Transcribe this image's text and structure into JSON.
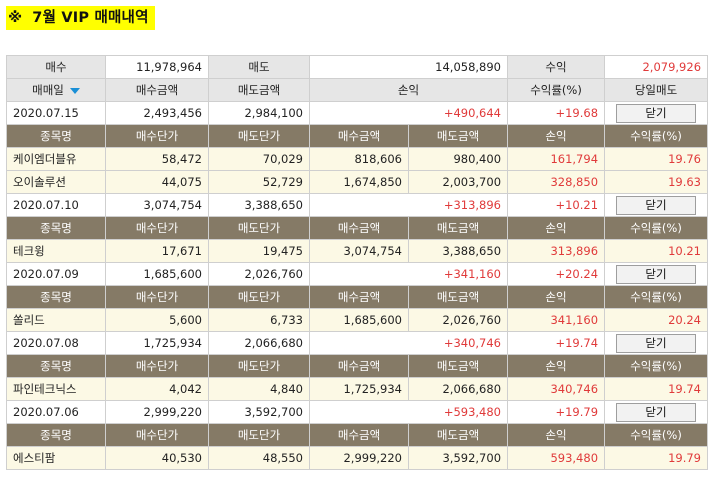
{
  "title": {
    "mark": "※",
    "text": "7월 VIP 매매내역"
  },
  "summary": {
    "buy_label": "매수",
    "buy_value": "11,978,964",
    "sell_label": "매도",
    "sell_value": "14,058,890",
    "profit_label": "수익",
    "profit_value": "2,079,926"
  },
  "header": {
    "col1": "매매일",
    "col2": "매수금액",
    "col3": "매도금액",
    "col4": "손익",
    "col5": "수익률(%)",
    "col6": "당일매도"
  },
  "subheader": {
    "col1": "종목명",
    "col2": "매수단가",
    "col3": "매도단가",
    "col4": "매수금액",
    "col5": "매도금액",
    "col6": "손익",
    "col7": "수익률(%)"
  },
  "close_label": "닫기",
  "days": [
    {
      "date": "2020.07.15",
      "buy": "2,493,456",
      "sell": "2,984,100",
      "pnl": "+490,644",
      "rate": "+19.68",
      "items": [
        {
          "name": "케이엠더블유",
          "buy_price": "58,472",
          "sell_price": "70,029",
          "buy_amt": "818,606",
          "sell_amt": "980,400",
          "pnl": "161,794",
          "rate": "19.76"
        },
        {
          "name": "오이솔루션",
          "buy_price": "44,075",
          "sell_price": "52,729",
          "buy_amt": "1,674,850",
          "sell_amt": "2,003,700",
          "pnl": "328,850",
          "rate": "19.63"
        }
      ]
    },
    {
      "date": "2020.07.10",
      "buy": "3,074,754",
      "sell": "3,388,650",
      "pnl": "+313,896",
      "rate": "+10.21",
      "items": [
        {
          "name": "테크윙",
          "buy_price": "17,671",
          "sell_price": "19,475",
          "buy_amt": "3,074,754",
          "sell_amt": "3,388,650",
          "pnl": "313,896",
          "rate": "10.21"
        }
      ]
    },
    {
      "date": "2020.07.09",
      "buy": "1,685,600",
      "sell": "2,026,760",
      "pnl": "+341,160",
      "rate": "+20.24",
      "items": [
        {
          "name": "쏠리드",
          "buy_price": "5,600",
          "sell_price": "6,733",
          "buy_amt": "1,685,600",
          "sell_amt": "2,026,760",
          "pnl": "341,160",
          "rate": "20.24"
        }
      ]
    },
    {
      "date": "2020.07.08",
      "buy": "1,725,934",
      "sell": "2,066,680",
      "pnl": "+340,746",
      "rate": "+19.74",
      "items": [
        {
          "name": "파인테크닉스",
          "buy_price": "4,042",
          "sell_price": "4,840",
          "buy_amt": "1,725,934",
          "sell_amt": "2,066,680",
          "pnl": "340,746",
          "rate": "19.74"
        }
      ]
    },
    {
      "date": "2020.07.06",
      "buy": "2,999,220",
      "sell": "3,592,700",
      "pnl": "+593,480",
      "rate": "+19.79",
      "items": [
        {
          "name": "에스티팜",
          "buy_price": "40,530",
          "sell_price": "48,550",
          "buy_amt": "2,999,220",
          "sell_amt": "3,592,700",
          "pnl": "593,480",
          "rate": "19.79"
        }
      ]
    }
  ]
}
